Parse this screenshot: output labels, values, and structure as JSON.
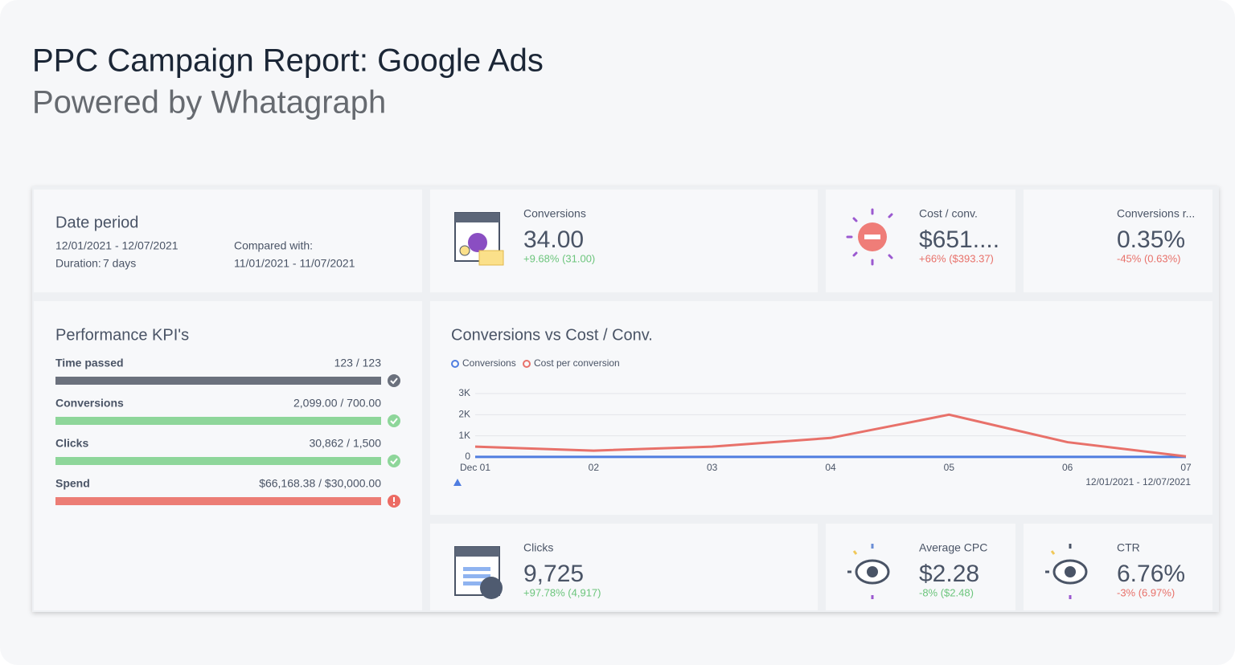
{
  "header": {
    "title": "PPC Campaign Report: Google Ads",
    "subtitle": "Powered by Whatagraph"
  },
  "date_period": {
    "title": "Date period",
    "range": "12/01/2021 - 12/07/2021",
    "duration_label": "Duration:",
    "duration": "7 days",
    "compared_label": "Compared with:",
    "compared_range": "11/01/2021 - 11/07/2021"
  },
  "metrics": [
    {
      "label": "Conversions",
      "value": "34.00",
      "change": "+9.68% (31.00)",
      "change_color": "#6cc57c"
    },
    {
      "label": "Cost / conv.",
      "value": "$651....",
      "change": "+66% ($393.37)",
      "change_color": "#e8716a"
    },
    {
      "label": "Conversions r...",
      "value": "0.35%",
      "change": "-45% (0.63%)",
      "change_color": "#e8716a"
    },
    {
      "label": "Clicks",
      "value": "9,725",
      "change": "+97.78% (4,917)",
      "change_color": "#6cc57c"
    },
    {
      "label": "Average CPC",
      "value": "$2.28",
      "change": "-8% ($2.48)",
      "change_color": "#6cc57c"
    },
    {
      "label": "CTR",
      "value": "6.76%",
      "change": "-3% (6.97%)",
      "change_color": "#e8716a"
    }
  ],
  "kpis": {
    "title": "Performance KPI's",
    "items": [
      {
        "label": "Time passed",
        "value": "123 / 123",
        "color": "#6b717d",
        "status": "done"
      },
      {
        "label": "Conversions",
        "value": "2,099.00 / 700.00",
        "color": "#8ed69a",
        "status": "ok"
      },
      {
        "label": "Clicks",
        "value": "30,862 / 1,500",
        "color": "#8ed69a",
        "status": "ok"
      },
      {
        "label": "Spend",
        "value": "$66,168.38 / $30,000.00",
        "color": "#ec7d75",
        "status": "alert"
      }
    ]
  },
  "chart_data": {
    "type": "line",
    "title": "Conversions vs Cost / Conv.",
    "categories": [
      "Dec 01",
      "02",
      "03",
      "04",
      "05",
      "06",
      "07"
    ],
    "series": [
      {
        "name": "Conversions",
        "color": "#4f7de0",
        "values": [
          5,
          4,
          6,
          5,
          7,
          4,
          3
        ]
      },
      {
        "name": "Cost per conversion",
        "color": "#e8716a",
        "values": [
          490,
          300,
          490,
          900,
          2000,
          700,
          30
        ]
      }
    ],
    "ylim": [
      0,
      3000
    ],
    "yticks": [
      0,
      {
        "value": 1000,
        "label": "1K"
      },
      {
        "value": 2000,
        "label": "2K"
      },
      {
        "value": 3000,
        "label": "3K"
      }
    ],
    "grid": true,
    "date_range": "12/01/2021 - 12/07/2021"
  }
}
